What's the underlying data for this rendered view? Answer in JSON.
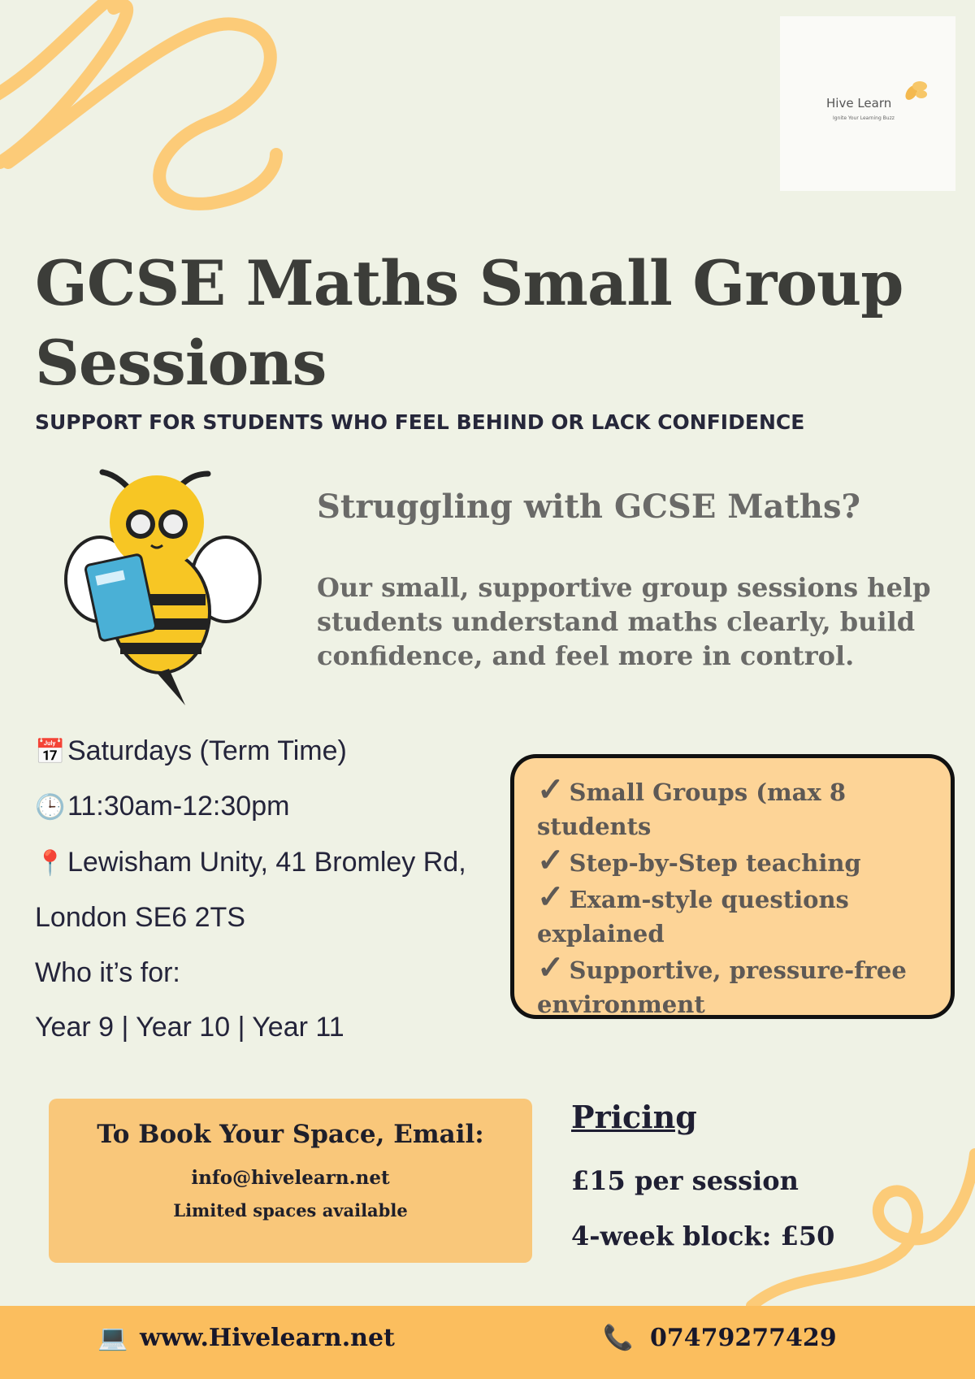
{
  "colors": {
    "background": "#eff2e5",
    "accent": "#fbbe5e",
    "box": "#fdd497",
    "swirl": "#fccb78"
  },
  "logo": {
    "name": "Hive Learn",
    "tagline": "Ignite Your Learning Buzz",
    "icon": "bee-icon"
  },
  "title": "GCSE Maths Small Group Sessions",
  "subtitle": "SUPPORT FOR STUDENTS WHO FEEL BEHIND OR LACK CONFIDENCE",
  "intro": {
    "heading": "Struggling with GCSE Maths?",
    "body": "Our small, supportive group sessions help students understand maths clearly, build confidence, and feel more in control."
  },
  "details": {
    "day": "Saturdays (Term Time)",
    "day_icon": "calendar-icon",
    "time": "11:30am-12:30pm",
    "time_icon": "clock-icon",
    "address1": "Lewisham Unity, 41 Bromley Rd,",
    "address2": "London SE6 2TS",
    "location_icon": "pin-icon",
    "who_label": "Who it’s for:",
    "who": "Year 9 | Year 10 | Year 11"
  },
  "features": [
    "Small Groups (max 8 students",
    "Step-by-Step teaching",
    "Exam-style questions explained",
    "Supportive, pressure-free environment"
  ],
  "booking": {
    "heading": "To Book Your Space, Email:",
    "email": "info@hivelearn.net",
    "note": "Limited spaces available"
  },
  "pricing": {
    "heading": "Pricing",
    "session": "£15 per session",
    "block": "4-week block: £50"
  },
  "footer": {
    "website": "www.Hivelearn.net",
    "phone": "07479277429",
    "website_icon": "laptop-icon",
    "phone_icon": "phone-icon"
  }
}
